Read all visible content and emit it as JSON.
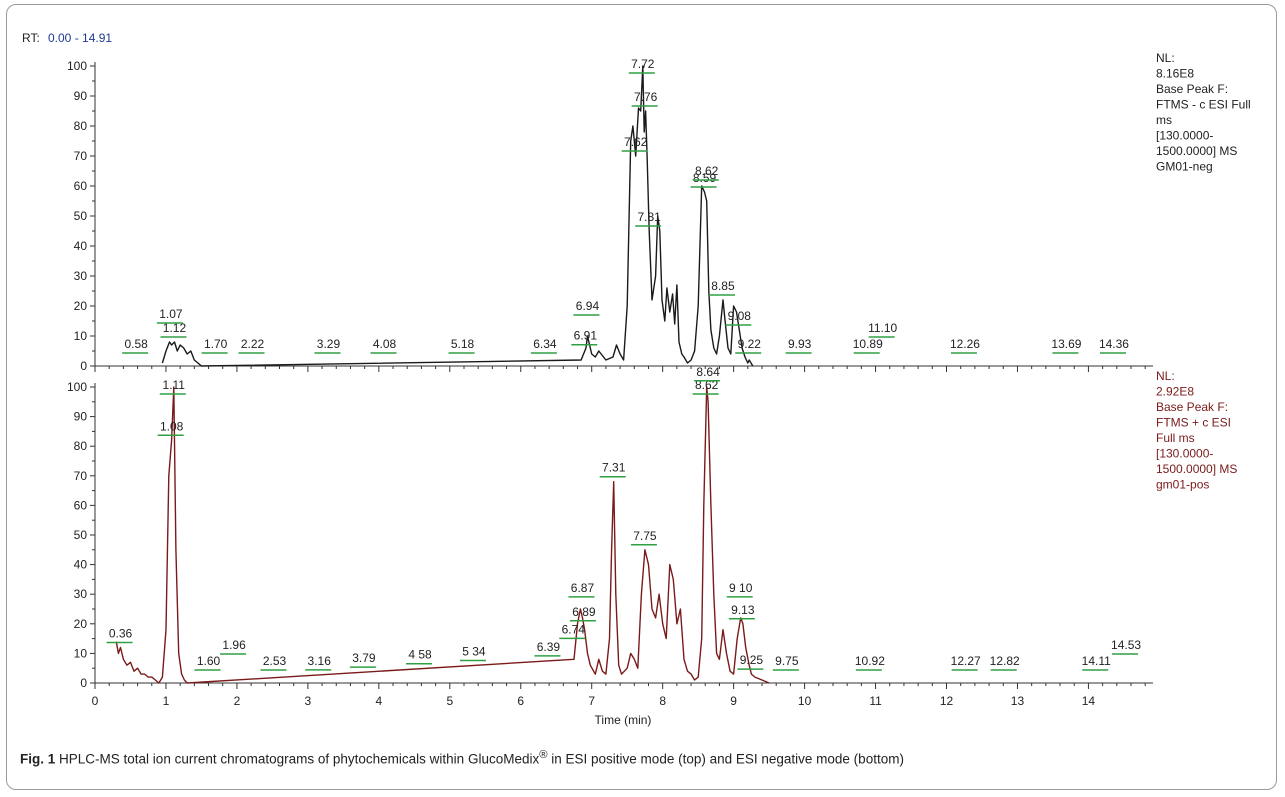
{
  "rt_label": "RT:",
  "rt_range": "0.00 - 14.91",
  "x_axis_label": "Time (min)",
  "caption": {
    "fig_label": "Fig. 1",
    "text_before_sup": "HPLC-MS total ion current chromatograms of phytochemicals within GlucoMedix",
    "sup": "®",
    "text_after_sup": " in ESI positive mode (top) and ESI negative mode (bottom)"
  },
  "colors": {
    "top_trace": "#1a1a1a",
    "bottom_trace": "#7a1a1a",
    "peak_tick": "#2ea043",
    "rt_blue": "#1f3a93",
    "nl_bottom": "#7a1a1a"
  },
  "chart_data": [
    {
      "type": "line",
      "panel": "top",
      "xlim": [
        0,
        14.91
      ],
      "ylim": [
        0,
        100
      ],
      "x_ticks": [
        0,
        1,
        2,
        3,
        4,
        5,
        6,
        7,
        8,
        9,
        10,
        11,
        12,
        13,
        14
      ],
      "y_ticks": [
        0,
        10,
        20,
        30,
        40,
        50,
        60,
        70,
        80,
        90,
        100
      ],
      "info_lines": [
        "NL:",
        "8.16E8",
        "Base Peak F:",
        "FTMS - c ESI Full",
        "ms",
        "[130.0000-",
        "1500.0000]  MS",
        "GM01-neg"
      ],
      "series": [
        {
          "x": [
            0.95,
            1.0,
            1.05,
            1.08,
            1.12,
            1.16,
            1.2,
            1.25,
            1.3,
            1.35,
            1.4,
            1.45,
            1.5,
            6.85,
            6.92,
            6.94,
            6.97,
            7.0,
            7.05,
            7.1,
            7.2,
            7.3,
            7.35,
            7.4,
            7.45,
            7.5,
            7.55,
            7.58,
            7.62,
            7.66,
            7.69,
            7.72,
            7.74,
            7.76,
            7.78,
            7.81,
            7.85,
            7.9,
            7.93,
            7.96,
            7.99,
            8.03,
            8.06,
            8.1,
            8.14,
            8.17,
            8.2,
            8.23,
            8.27,
            8.3,
            8.35,
            8.4,
            8.45,
            8.5,
            8.55,
            8.59,
            8.62,
            8.65,
            8.68,
            8.72,
            8.76,
            8.8,
            8.85,
            8.88,
            8.92,
            8.96,
            9.0,
            9.04,
            9.08,
            9.12,
            9.16,
            9.2,
            9.22,
            9.27
          ],
          "y": [
            1,
            5,
            8,
            7,
            8,
            5,
            7,
            6,
            4,
            5,
            2,
            1,
            0,
            2,
            6,
            10,
            7,
            4,
            3,
            5,
            2,
            3,
            7,
            4,
            2,
            20,
            75,
            80,
            70,
            86,
            85,
            100,
            78,
            85,
            70,
            45,
            22,
            30,
            50,
            45,
            22,
            15,
            26,
            18,
            24,
            14,
            27,
            8,
            4,
            3,
            1,
            2,
            5,
            20,
            60,
            58,
            55,
            25,
            12,
            6,
            4,
            10,
            22,
            15,
            6,
            4,
            20,
            18,
            12,
            6,
            3,
            1,
            2,
            0
          ]
        }
      ],
      "peak_labels": [
        {
          "x": 0.58,
          "text": "0.58"
        },
        {
          "x": 1.12,
          "text": "1.12"
        },
        {
          "x": 1.07,
          "text": "1.07"
        },
        {
          "x": 1.7,
          "text": "1.70"
        },
        {
          "x": 2.22,
          "text": "2.22"
        },
        {
          "x": 3.29,
          "text": "3.29"
        },
        {
          "x": 4.08,
          "text": "4.08"
        },
        {
          "x": 5.18,
          "text": "5.18"
        },
        {
          "x": 6.34,
          "text": "6.34"
        },
        {
          "x": 6.91,
          "text": "6.91"
        },
        {
          "x": 6.94,
          "text": "6.94"
        },
        {
          "x": 7.62,
          "text": "7.62"
        },
        {
          "x": 7.72,
          "text": "7.72"
        },
        {
          "x": 7.76,
          "text": "7.76"
        },
        {
          "x": 7.81,
          "text": "7.81"
        },
        {
          "x": 8.59,
          "text": "8.59"
        },
        {
          "x": 8.62,
          "text": "8.62"
        },
        {
          "x": 8.85,
          "text": "8.85"
        },
        {
          "x": 9.08,
          "text": "9.08"
        },
        {
          "x": 9.22,
          "text": "9.22"
        },
        {
          "x": 9.93,
          "text": "9.93"
        },
        {
          "x": 10.89,
          "text": "10.89"
        },
        {
          "x": 11.1,
          "text": "11.10"
        },
        {
          "x": 12.26,
          "text": "12.26"
        },
        {
          "x": 13.69,
          "text": "13.69"
        },
        {
          "x": 14.36,
          "text": "14.36"
        }
      ]
    },
    {
      "type": "line",
      "panel": "bottom",
      "xlim": [
        0,
        14.91
      ],
      "ylim": [
        0,
        100
      ],
      "x_ticks": [
        0,
        1,
        2,
        3,
        4,
        5,
        6,
        7,
        8,
        9,
        10,
        11,
        12,
        13,
        14
      ],
      "y_ticks": [
        0,
        10,
        20,
        30,
        40,
        50,
        60,
        70,
        80,
        90,
        100
      ],
      "xlabel": "Time (min)",
      "info_lines": [
        "NL:",
        "2.92E8",
        "Base Peak F:",
        "FTMS  + c ESI",
        "Full ms",
        "[130.0000-",
        "1500.0000]  MS",
        "gm01-pos"
      ],
      "series": [
        {
          "x": [
            0.3,
            0.33,
            0.36,
            0.4,
            0.45,
            0.5,
            0.55,
            0.6,
            0.65,
            0.7,
            0.75,
            0.8,
            0.85,
            0.9,
            0.95,
            1.0,
            1.04,
            1.08,
            1.11,
            1.14,
            1.18,
            1.22,
            1.26,
            1.3,
            6.75,
            6.8,
            6.84,
            6.87,
            6.9,
            6.94,
            6.98,
            7.05,
            7.1,
            7.15,
            7.2,
            7.25,
            7.28,
            7.31,
            7.34,
            7.38,
            7.42,
            7.5,
            7.55,
            7.6,
            7.65,
            7.7,
            7.75,
            7.8,
            7.85,
            7.9,
            7.95,
            8.0,
            8.05,
            8.1,
            8.15,
            8.2,
            8.25,
            8.3,
            8.35,
            8.4,
            8.45,
            8.5,
            8.55,
            8.58,
            8.62,
            8.64,
            8.68,
            8.72,
            8.76,
            8.8,
            8.85,
            8.9,
            8.95,
            9.0,
            9.05,
            9.1,
            9.13,
            9.17,
            9.22,
            9.25,
            9.3,
            9.4,
            9.5
          ],
          "y": [
            14,
            10,
            12,
            8,
            6,
            7,
            4,
            5,
            3,
            3,
            2,
            2,
            1,
            0,
            2,
            18,
            70,
            82,
            100,
            45,
            10,
            3,
            1,
            0,
            8,
            20,
            25,
            22,
            18,
            10,
            6,
            3,
            8,
            4,
            3,
            15,
            45,
            68,
            30,
            6,
            3,
            5,
            10,
            8,
            5,
            30,
            45,
            40,
            25,
            22,
            30,
            20,
            15,
            40,
            35,
            20,
            25,
            8,
            4,
            3,
            1,
            2,
            15,
            60,
            100,
            95,
            60,
            30,
            10,
            8,
            18,
            10,
            4,
            3,
            15,
            22,
            20,
            12,
            6,
            3,
            2,
            1,
            0
          ]
        }
      ],
      "peak_labels": [
        {
          "x": 0.36,
          "text": "0.36"
        },
        {
          "x": 1.08,
          "text": "1.08"
        },
        {
          "x": 1.11,
          "text": "1.11"
        },
        {
          "x": 1.6,
          "text": "1.60"
        },
        {
          "x": 1.96,
          "text": "1.96"
        },
        {
          "x": 2.53,
          "text": "2.53"
        },
        {
          "x": 3.16,
          "text": "3.16"
        },
        {
          "x": 3.79,
          "text": "3.79"
        },
        {
          "x": 4.58,
          "text": "4 58"
        },
        {
          "x": 5.34,
          "text": "5 34"
        },
        {
          "x": 6.39,
          "text": "6.39"
        },
        {
          "x": 6.74,
          "text": "6.74"
        },
        {
          "x": 6.89,
          "text": "6 89"
        },
        {
          "x": 6.87,
          "text": "6.87"
        },
        {
          "x": 7.31,
          "text": "7.31"
        },
        {
          "x": 7.75,
          "text": "7.75"
        },
        {
          "x": 8.62,
          "text": "8.62"
        },
        {
          "x": 8.64,
          "text": "8.64"
        },
        {
          "x": 9.13,
          "text": "9.13"
        },
        {
          "x": 9.1,
          "text": "9 10"
        },
        {
          "x": 9.25,
          "text": "9.25"
        },
        {
          "x": 9.75,
          "text": "9.75"
        },
        {
          "x": 10.92,
          "text": "10.92"
        },
        {
          "x": 12.27,
          "text": "12.27"
        },
        {
          "x": 12.82,
          "text": "12.82"
        },
        {
          "x": 14.11,
          "text": "14.11"
        },
        {
          "x": 14.53,
          "text": "14.53"
        }
      ]
    }
  ]
}
